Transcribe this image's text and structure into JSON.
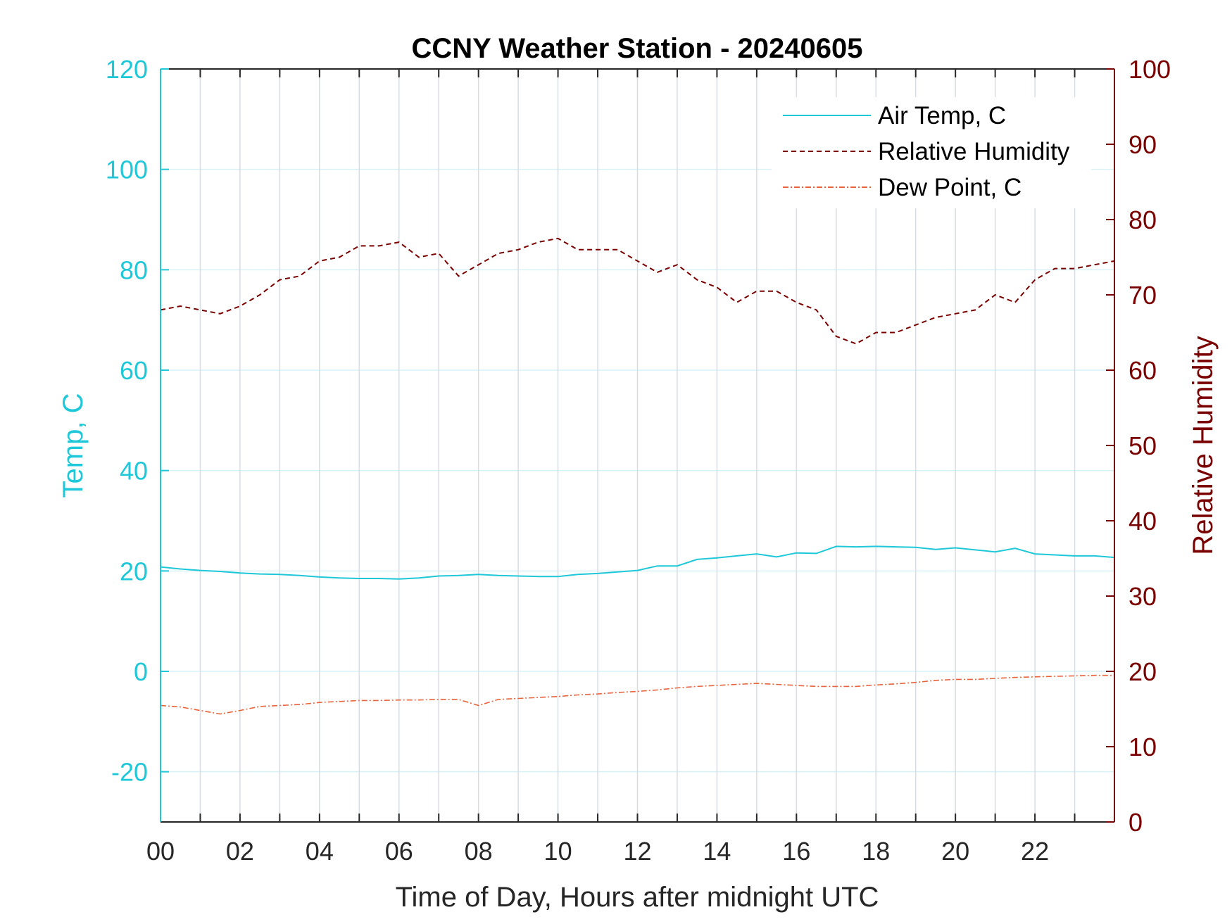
{
  "chart_data": {
    "type": "line",
    "title": "CCNY Weather Station - 20240605",
    "xlabel": "Time of Day, Hours after midnight UTC",
    "ylabel_left": "Temp, C",
    "ylabel_right": "Relative Humidity",
    "xlim": [
      0,
      24
    ],
    "ylim_left": [
      -30,
      120
    ],
    "ylim_right": [
      0,
      100
    ],
    "x_ticks": [
      0,
      2,
      4,
      6,
      8,
      10,
      12,
      14,
      16,
      18,
      20,
      22
    ],
    "x_tick_labels": [
      "00",
      "02",
      "04",
      "06",
      "08",
      "10",
      "12",
      "14",
      "16",
      "18",
      "20",
      "22"
    ],
    "y_left_ticks": [
      -20,
      0,
      20,
      40,
      60,
      80,
      100,
      120
    ],
    "y_left_tick_labels": [
      "-20",
      "0",
      "20",
      "40",
      "60",
      "80",
      "100",
      "120"
    ],
    "y_right_ticks": [
      0,
      10,
      20,
      30,
      40,
      50,
      60,
      70,
      80,
      90,
      100
    ],
    "y_right_tick_labels": [
      "0",
      "10",
      "20",
      "30",
      "40",
      "50",
      "60",
      "70",
      "80",
      "90",
      "100"
    ],
    "grid": true,
    "legend_position": "top-right",
    "colors": {
      "left_axis": "#1ec8d8",
      "right_axis": "#7a0000",
      "dew_point": "#e8643c",
      "grid": "#d8dde3",
      "hgrid": "#d6f2f7"
    },
    "x": [
      0,
      0.5,
      1,
      1.5,
      2,
      2.5,
      3,
      3.5,
      4,
      4.5,
      5,
      5.5,
      6,
      6.5,
      7,
      7.5,
      8,
      8.5,
      9,
      9.5,
      10,
      10.5,
      11,
      11.5,
      12,
      12.5,
      13,
      13.5,
      14,
      14.5,
      15,
      15.5,
      16,
      16.5,
      17,
      17.5,
      18,
      18.5,
      19,
      19.5,
      20,
      20.5,
      21,
      21.5,
      22,
      22.5,
      23,
      23.5,
      24
    ],
    "series": [
      {
        "name": "Air Temp, C",
        "axis": "left",
        "style": "solid",
        "values": [
          20.8,
          20.4,
          20.1,
          19.9,
          19.6,
          19.4,
          19.3,
          19.1,
          18.8,
          18.6,
          18.5,
          18.5,
          18.4,
          18.6,
          19.0,
          19.1,
          19.3,
          19.1,
          19.0,
          18.9,
          18.9,
          19.3,
          19.5,
          19.8,
          20.1,
          21.0,
          21.0,
          22.3,
          22.6,
          23.0,
          23.4,
          22.8,
          23.6,
          23.5,
          24.9,
          24.8,
          24.9,
          24.8,
          24.7,
          24.3,
          24.6,
          24.2,
          23.8,
          24.5,
          23.4,
          23.2,
          23.0,
          23.0,
          22.7
        ]
      },
      {
        "name": "Relative Humidity",
        "axis": "right",
        "style": "dashed",
        "values": [
          68,
          68.5,
          68,
          67.5,
          68.5,
          70,
          72,
          72.5,
          74.5,
          75,
          76.5,
          76.5,
          77,
          75,
          75.5,
          72.5,
          74,
          75.5,
          76,
          77,
          77.5,
          76,
          76,
          76,
          74.5,
          73,
          74,
          72,
          71,
          69,
          70.5,
          70.5,
          69,
          68,
          64.5,
          63.5,
          65,
          65,
          66,
          67,
          67.5,
          68,
          70,
          69,
          72,
          73.5,
          73.5,
          74,
          74.5
        ]
      },
      {
        "name": "Dew Point, C",
        "axis": "left",
        "style": "dash-dot",
        "values": [
          -6.8,
          -7.1,
          -7.8,
          -8.5,
          -7.8,
          -7.0,
          -6.8,
          -6.6,
          -6.2,
          -6.0,
          -5.8,
          -5.8,
          -5.7,
          -5.7,
          -5.6,
          -5.6,
          -6.8,
          -5.6,
          -5.4,
          -5.2,
          -5.0,
          -4.7,
          -4.5,
          -4.2,
          -4.0,
          -3.7,
          -3.3,
          -3.0,
          -2.8,
          -2.6,
          -2.4,
          -2.6,
          -2.8,
          -3.0,
          -3.0,
          -3.0,
          -2.7,
          -2.5,
          -2.2,
          -1.8,
          -1.6,
          -1.6,
          -1.4,
          -1.2,
          -1.1,
          -1.0,
          -0.9,
          -0.8,
          -0.8
        ]
      }
    ]
  }
}
